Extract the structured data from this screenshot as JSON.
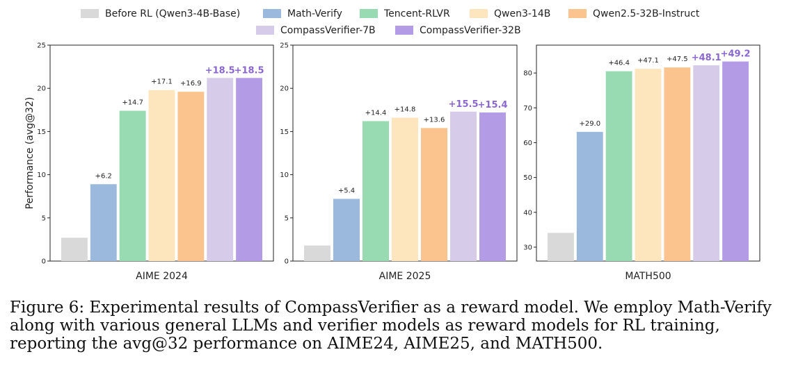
{
  "legend": [
    {
      "label": "Before RL (Qwen3-4B-Base)",
      "color": "#d9d9d9"
    },
    {
      "label": "Math-Verify",
      "color": "#9bb8dd"
    },
    {
      "label": "Tencent-RLVR",
      "color": "#98dbb3"
    },
    {
      "label": "Qwen3-14B",
      "color": "#fde5be"
    },
    {
      "label": "Qwen2.5-32B-Instruct",
      "color": "#fbc48f"
    },
    {
      "label": "CompassVerifier-7B",
      "color": "#d6cbe9"
    },
    {
      "label": "CompassVerifier-32B",
      "color": "#b39be6"
    }
  ],
  "accent_annotation_color": "#8a67cf",
  "caption": {
    "label": "Figure 6:",
    "text": "Experimental results of CompassVerifier as a reward model. We employ Math-Verify along with various general LLMs and verifier models as reward models for RL training, reporting the avg@32 performance on AIME24, AIME25, and MATH500."
  },
  "chart_data": [
    {
      "type": "bar",
      "xlabel": "AIME 2024",
      "ylabel": "Performance (avg@32)",
      "ylim": [
        0,
        25
      ],
      "yticks": [
        0,
        5,
        10,
        15,
        20,
        25
      ],
      "series": [
        {
          "name": "Before RL (Qwen3-4B-Base)",
          "value": 2.7,
          "label": ""
        },
        {
          "name": "Math-Verify",
          "value": 8.9,
          "label": "+6.2"
        },
        {
          "name": "Tencent-RLVR",
          "value": 17.4,
          "label": "+14.7"
        },
        {
          "name": "Qwen3-14B",
          "value": 19.8,
          "label": "+17.1"
        },
        {
          "name": "Qwen2.5-32B-Instruct",
          "value": 19.6,
          "label": "+16.9"
        },
        {
          "name": "CompassVerifier-7B",
          "value": 21.2,
          "label": "+18.5",
          "highlight": true
        },
        {
          "name": "CompassVerifier-32B",
          "value": 21.2,
          "label": "+18.5",
          "highlight": true
        }
      ]
    },
    {
      "type": "bar",
      "xlabel": "AIME 2025",
      "ylabel": "",
      "ylim": [
        0,
        25
      ],
      "yticks": [
        0,
        5,
        10,
        15,
        20,
        25
      ],
      "series": [
        {
          "name": "Before RL (Qwen3-4B-Base)",
          "value": 1.8,
          "label": ""
        },
        {
          "name": "Math-Verify",
          "value": 7.2,
          "label": "+5.4"
        },
        {
          "name": "Tencent-RLVR",
          "value": 16.2,
          "label": "+14.4"
        },
        {
          "name": "Qwen3-14B",
          "value": 16.6,
          "label": "+14.8"
        },
        {
          "name": "Qwen2.5-32B-Instruct",
          "value": 15.4,
          "label": "+13.6"
        },
        {
          "name": "CompassVerifier-7B",
          "value": 17.3,
          "label": "+15.5",
          "highlight": true
        },
        {
          "name": "CompassVerifier-32B",
          "value": 17.2,
          "label": "+15.4",
          "highlight": true
        }
      ]
    },
    {
      "type": "bar",
      "xlabel": "MATH500",
      "ylabel": "",
      "ylim": [
        26,
        88
      ],
      "yticks": [
        30,
        40,
        50,
        60,
        70,
        80
      ],
      "series": [
        {
          "name": "Before RL (Qwen3-4B-Base)",
          "value": 34.1,
          "label": ""
        },
        {
          "name": "Math-Verify",
          "value": 63.1,
          "label": "+29.0"
        },
        {
          "name": "Tencent-RLVR",
          "value": 80.5,
          "label": "+46.4"
        },
        {
          "name": "Qwen3-14B",
          "value": 81.2,
          "label": "+47.1"
        },
        {
          "name": "Qwen2.5-32B-Instruct",
          "value": 81.6,
          "label": "+47.5"
        },
        {
          "name": "CompassVerifier-7B",
          "value": 82.2,
          "label": "+48.1",
          "highlight": true
        },
        {
          "name": "CompassVerifier-32B",
          "value": 83.3,
          "label": "+49.2",
          "highlight": true
        }
      ]
    }
  ]
}
